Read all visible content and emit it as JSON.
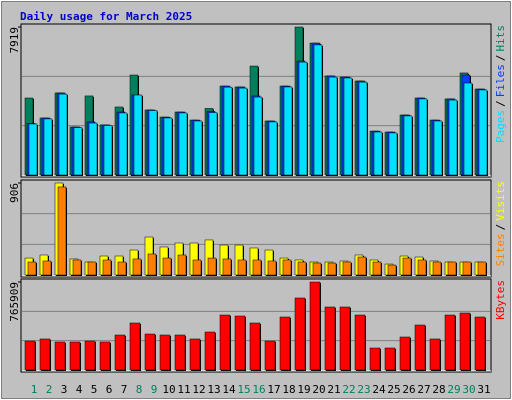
{
  "chart_data": [
    {
      "type": "bar",
      "title": "Daily usage for March 2025",
      "title_color": "#0000cc",
      "ylim": [
        0,
        7919
      ],
      "yticks": [
        7919
      ],
      "legend_separator": "/",
      "series": [
        {
          "name": "Hits",
          "color": "#00805c",
          "values": [
            4120,
            3050,
            4390,
            2570,
            4230,
            2680,
            3640,
            5350,
            3480,
            3100,
            3370,
            2940,
            3560,
            4760,
            4710,
            5830,
            2890,
            4760,
            7919,
            7060,
            5300,
            5240,
            5030,
            2350,
            2300,
            3210,
            4120,
            2940,
            4070,
            5460,
            4600
          ]
        },
        {
          "name": "Files",
          "color": "#0040ff",
          "values": [
            2760,
            3050,
            4390,
            2570,
            2840,
            2680,
            3370,
            4280,
            3480,
            3100,
            3370,
            2940,
            3400,
            4760,
            4710,
            4230,
            2890,
            4760,
            6100,
            7060,
            5300,
            5240,
            5030,
            2350,
            2300,
            3210,
            4120,
            2940,
            4070,
            5350,
            4600
          ]
        },
        {
          "name": "Pages",
          "color": "#00e0ff",
          "values": [
            2730,
            3000,
            4330,
            2540,
            2780,
            2650,
            3320,
            4280,
            3450,
            3050,
            3320,
            2890,
            3340,
            4700,
            4650,
            4170,
            2840,
            4710,
            6040,
            6960,
            5240,
            5190,
            4970,
            2300,
            2250,
            3160,
            4070,
            2890,
            4010,
            4920,
            4550
          ]
        }
      ]
    },
    {
      "type": "bar",
      "ylim": [
        0,
        906
      ],
      "yticks": [
        906
      ],
      "legend_separator": "/",
      "series": [
        {
          "name": "Visits",
          "color": "#ffff00",
          "values": [
            167,
            197,
            906,
            158,
            128,
            187,
            187,
            246,
            374,
            276,
            315,
            315,
            345,
            295,
            295,
            266,
            246,
            167,
            148,
            128,
            128,
            138,
            197,
            148,
            108,
            187,
            177,
            138,
            128,
            128,
            128
          ]
        },
        {
          "name": "Sites",
          "color": "#ff8000",
          "values": [
            128,
            138,
            867,
            148,
            128,
            148,
            128,
            158,
            207,
            167,
            197,
            148,
            167,
            158,
            148,
            148,
            138,
            148,
            128,
            118,
            118,
            128,
            177,
            128,
            98,
            167,
            148,
            128,
            128,
            128,
            128
          ]
        }
      ]
    },
    {
      "type": "bar",
      "ylim": [
        0,
        765909
      ],
      "yticks": [
        765909
      ],
      "categories": [
        "1",
        "2",
        "3",
        "4",
        "5",
        "6",
        "7",
        "8",
        "9",
        "10",
        "11",
        "12",
        "13",
        "14",
        "15",
        "16",
        "17",
        "18",
        "19",
        "20",
        "21",
        "22",
        "23",
        "24",
        "25",
        "26",
        "27",
        "28",
        "29",
        "30",
        "31"
      ],
      "category_colors": [
        "#00805c",
        "#00805c",
        "#000000",
        "#000000",
        "#000000",
        "#000000",
        "#000000",
        "#00805c",
        "#00805c",
        "#000000",
        "#000000",
        "#000000",
        "#000000",
        "#000000",
        "#00805c",
        "#00805c",
        "#000000",
        "#000000",
        "#000000",
        "#000000",
        "#000000",
        "#00805c",
        "#00805c",
        "#000000",
        "#000000",
        "#000000",
        "#000000",
        "#000000",
        "#00805c",
        "#00805c",
        "#000000"
      ],
      "series": [
        {
          "name": "KBytes",
          "color": "#ff0000",
          "values": [
            252400,
            270000,
            243700,
            243700,
            252400,
            243700,
            304600,
            409000,
            313300,
            304600,
            304600,
            270000,
            330700,
            478600,
            470000,
            409000,
            252400,
            461300,
            626700,
            765909,
            548300,
            548300,
            478600,
            191500,
            191500,
            287200,
            391600,
            270000,
            478600,
            496000,
            461300
          ]
        }
      ]
    }
  ]
}
